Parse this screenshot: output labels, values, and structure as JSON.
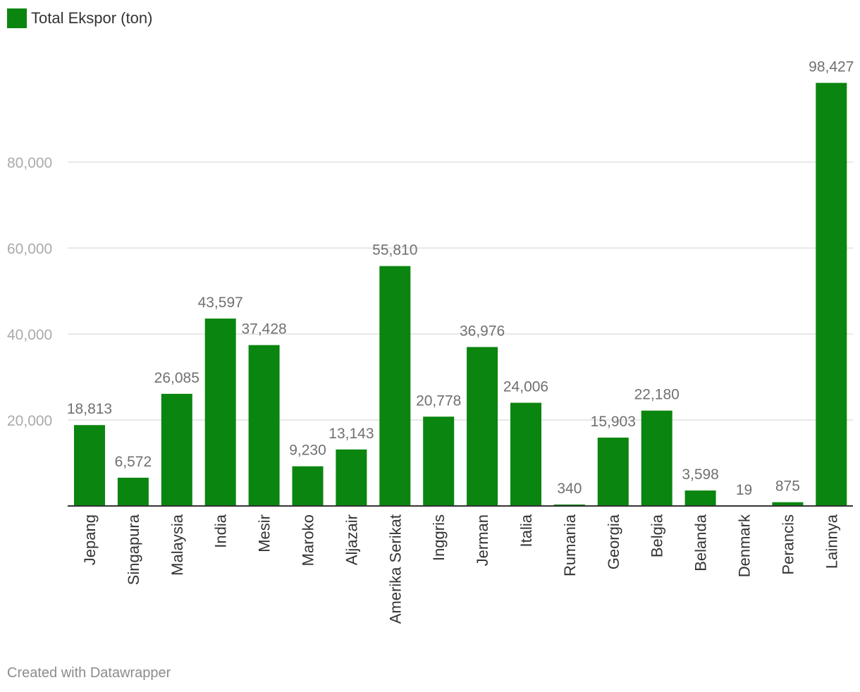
{
  "legend": {
    "label": "Total Ekspor (ton)",
    "color": "#0a850f"
  },
  "footer": {
    "text": "Created with Datawrapper"
  },
  "chart_data": {
    "type": "bar",
    "title": "",
    "xlabel": "",
    "ylabel": "",
    "categories": [
      "Jepang",
      "Singapura",
      "Malaysia",
      "India",
      "Mesir",
      "Maroko",
      "Aljazair",
      "Amerika Serikat",
      "Inggris",
      "Jerman",
      "Italia",
      "Rumania",
      "Georgia",
      "Belgia",
      "Belanda",
      "Denmark",
      "Perancis",
      "Lainnya"
    ],
    "series": [
      {
        "name": "Total Ekspor (ton)",
        "values": [
          18813,
          6572,
          26085,
          43597,
          37428,
          9230,
          13143,
          55810,
          20778,
          36976,
          24006,
          340,
          15903,
          22180,
          3598,
          19,
          875,
          98427
        ],
        "labels": [
          "18,813",
          "6,572",
          "26,085",
          "43,597",
          "37,428",
          "9,230",
          "13,143",
          "55,810",
          "20,778",
          "36,976",
          "24,006",
          "340",
          "15,903",
          "22,180",
          "3,598",
          "19",
          "875",
          "98,427"
        ]
      }
    ],
    "yticks": [
      20000,
      40000,
      60000,
      80000
    ],
    "ytick_labels": [
      "20,000",
      "40,000",
      "60,000",
      "80,000"
    ],
    "ylim": [
      0,
      98427
    ],
    "grid": true,
    "legend_position": "top-left",
    "colors": {
      "bar": "#0a850f",
      "grid": "#e0e0e0",
      "axis": "#333333",
      "tick_label": "#aaaaaa",
      "value_label": "#707070",
      "category_label": "#333333"
    }
  }
}
